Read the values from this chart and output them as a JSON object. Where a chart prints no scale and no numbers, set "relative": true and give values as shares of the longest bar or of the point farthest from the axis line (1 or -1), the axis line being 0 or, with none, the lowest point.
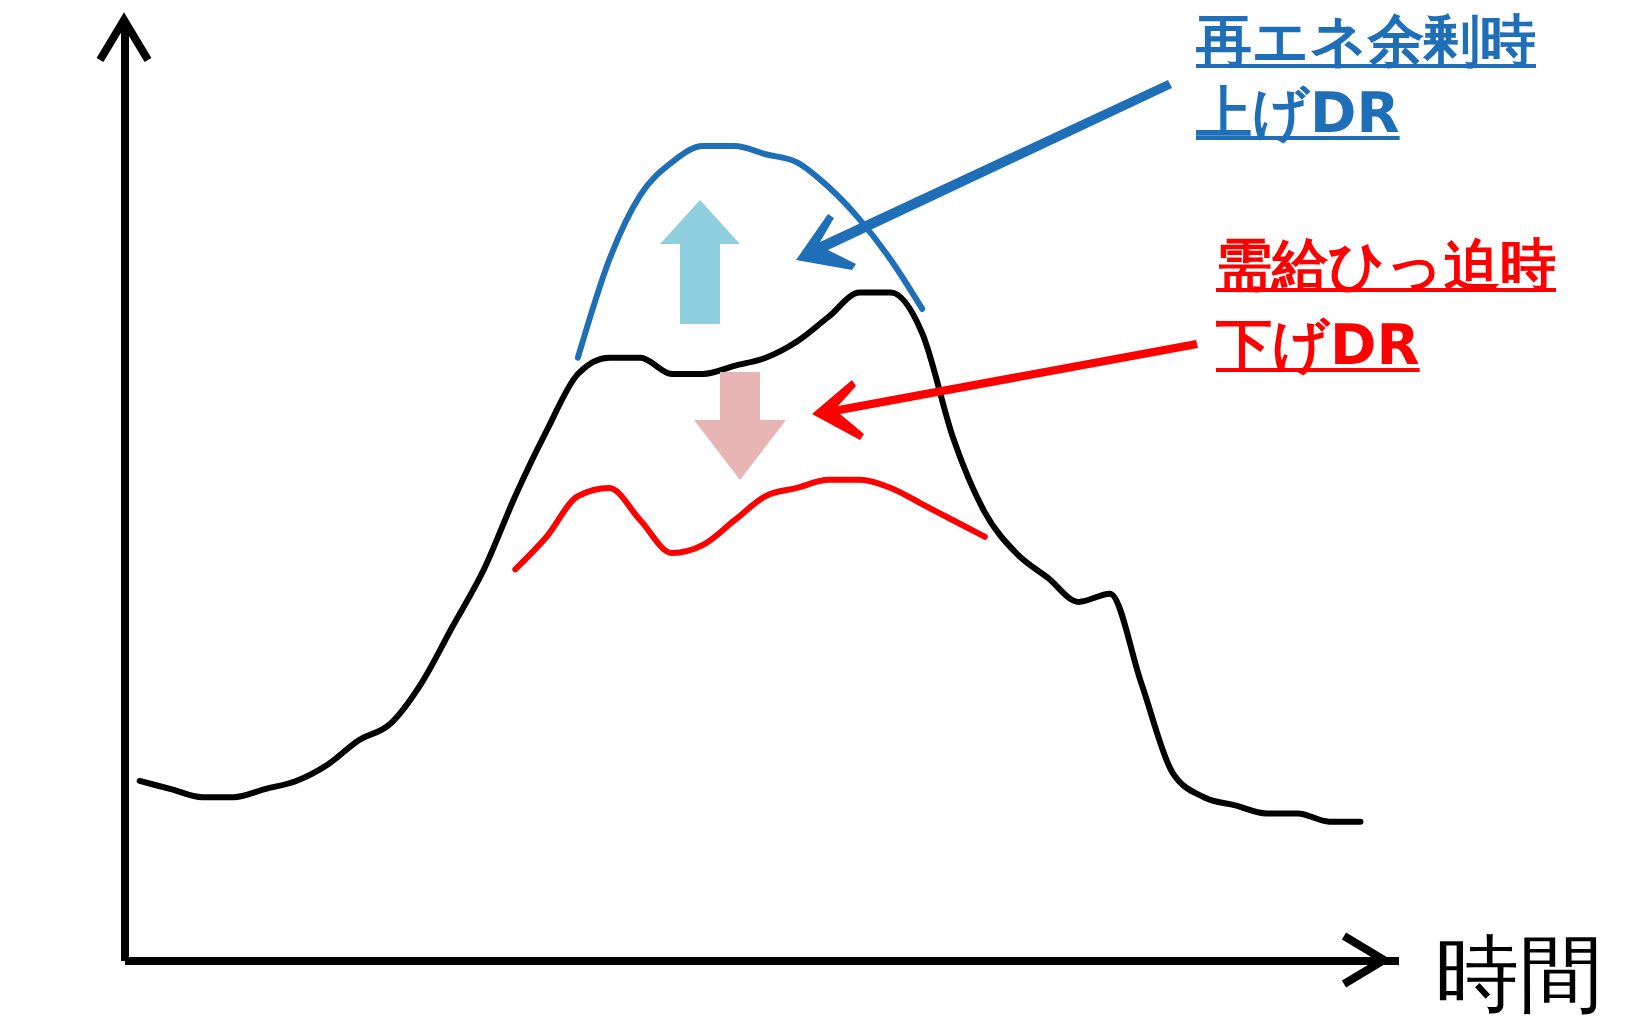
{
  "chart_data": {
    "type": "line",
    "relative": true,
    "xlabel": "時間",
    "categories": [
      null,
      null,
      null,
      null,
      null,
      null,
      null,
      null,
      null,
      null,
      null,
      null,
      null,
      null,
      null,
      null,
      null,
      null,
      null,
      null,
      null,
      null,
      null,
      null,
      null,
      null,
      null,
      null,
      null,
      null,
      null,
      null,
      null,
      null,
      null,
      null,
      null,
      null,
      null,
      null
    ],
    "series": [
      {
        "color": "#000000",
        "values": [
          0.22,
          0.21,
          0.2,
          0.2,
          0.21,
          0.22,
          0.24,
          0.27,
          0.29,
          0.34,
          0.41,
          0.48,
          0.57,
          0.65,
          0.72,
          0.74,
          0.74,
          0.72,
          0.72,
          0.73,
          0.74,
          0.76,
          0.79,
          0.82,
          0.82,
          0.77,
          0.64,
          0.55,
          0.5,
          0.47,
          0.44,
          0.45,
          0.34,
          0.23,
          0.2,
          0.19,
          0.18,
          0.18,
          0.17,
          0.17
        ]
      },
      {
        "color": "#1f6fb8",
        "values": [
          null,
          null,
          null,
          null,
          null,
          null,
          null,
          null,
          null,
          null,
          null,
          null,
          null,
          null,
          0.74,
          0.86,
          0.94,
          0.98,
          1.0,
          1.0,
          0.99,
          0.98,
          0.95,
          0.91,
          0.86,
          0.8,
          null,
          null,
          null,
          null,
          null,
          null,
          null,
          null,
          null,
          null,
          null,
          null,
          null,
          null
        ]
      },
      {
        "color": "#ff0000",
        "values": [
          null,
          null,
          null,
          null,
          null,
          null,
          null,
          null,
          null,
          null,
          null,
          null,
          0.48,
          0.52,
          0.57,
          0.58,
          0.54,
          0.5,
          0.51,
          0.54,
          0.57,
          0.58,
          0.59,
          0.59,
          0.58,
          0.56,
          0.54,
          0.52,
          null,
          null,
          null,
          null,
          null,
          null,
          null,
          null,
          null,
          null,
          null,
          null
        ]
      }
    ],
    "annotations": [
      "再エネ余剰時",
      "上げDR",
      "需給ひっ迫時",
      "下げDR"
    ],
    "line_style": "solid",
    "marker": "none"
  }
}
